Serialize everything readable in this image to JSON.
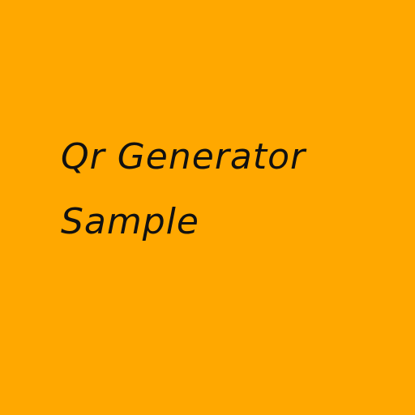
{
  "background_color": "#FFA800",
  "text_color": "#111111",
  "title": {
    "line1": "Qr Generator",
    "line2": "Sample"
  }
}
